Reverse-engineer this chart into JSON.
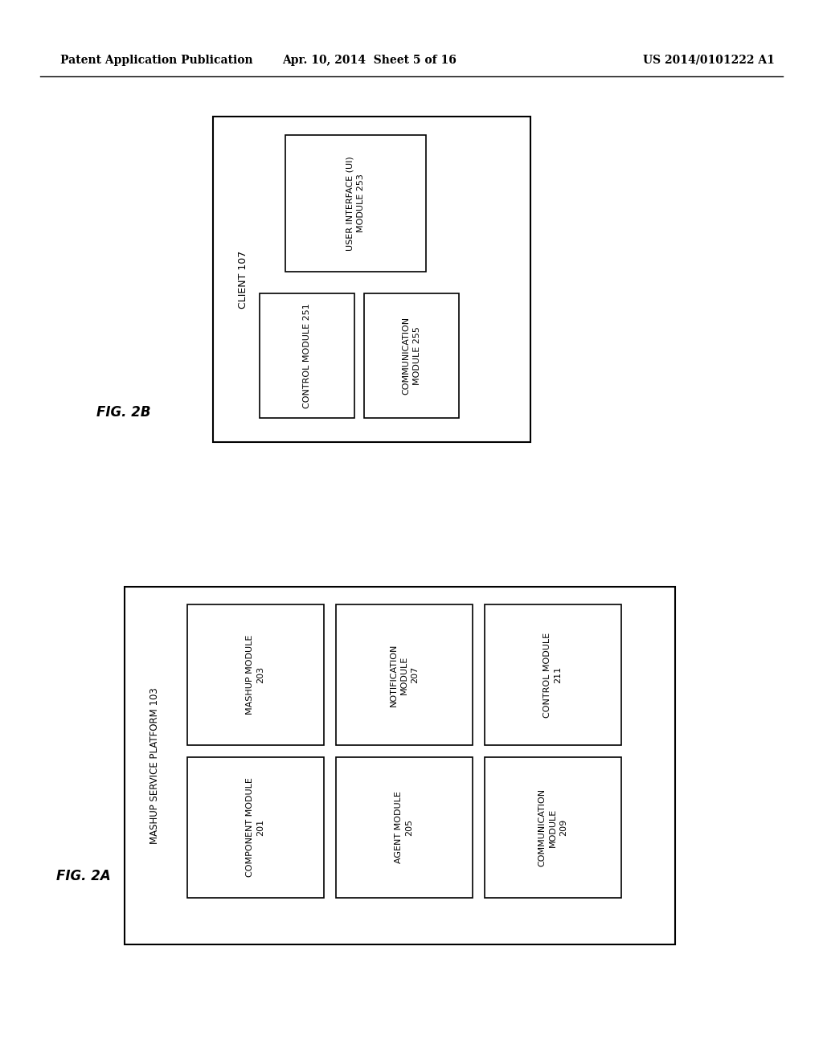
{
  "header_left": "Patent Application Publication",
  "header_mid": "Apr. 10, 2014  Sheet 5 of 16",
  "header_right": "US 2014/0101222 A1",
  "fig2b_label": "FIG. 2B",
  "fig2a_label": "FIG. 2A",
  "fig2b_outer_label": "CLIENT 107",
  "fig2a_outer_label": "MASHUP SERVICE PLATFORM 103",
  "fig2b_ui_label": "USER INTERFACE (UI)\nMODULE 253",
  "fig2b_ctrl_label": "CONTROL MODULE 251",
  "fig2b_comm_label": "COMMUNICATION\nMODULE 255",
  "fig2a_boxes": [
    "MASHUP MODULE\n203",
    "NOTIFICATION\nMODULE\n207",
    "CONTROL MODULE\n211",
    "COMPONENT MODULE\n201",
    "AGENT MODULE\n205",
    "COMMUNICATION\nMODULE\n209"
  ]
}
